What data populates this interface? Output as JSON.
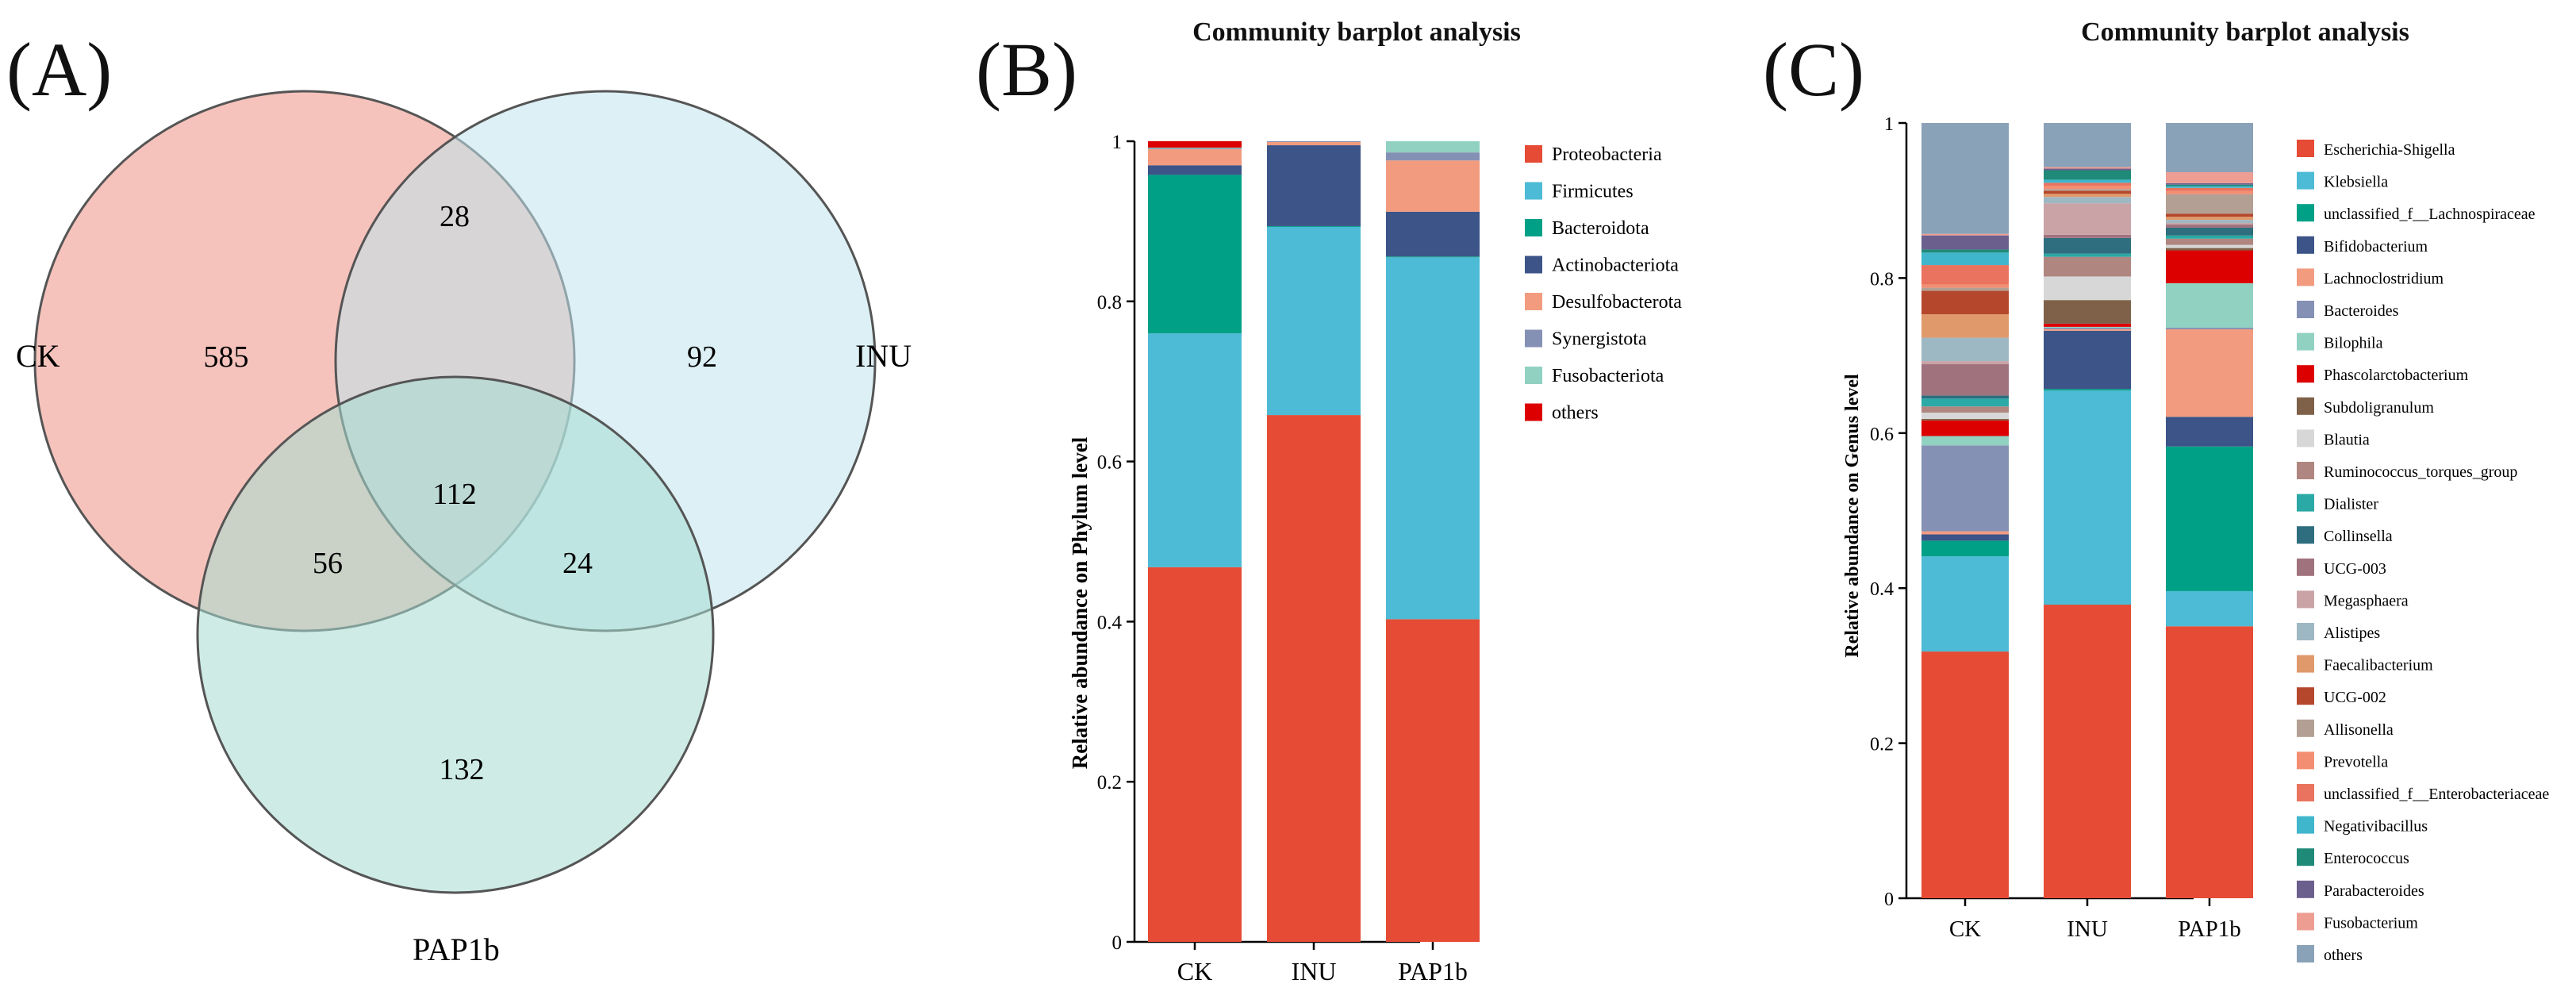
{
  "panels": {
    "a": {
      "label": "(A)"
    },
    "b": {
      "label": "(B)"
    },
    "c": {
      "label": "(C)"
    }
  },
  "colors": {
    "ck": "#f4b8b0",
    "inu": "#bfe3ec",
    "pap": "#a5dcd0"
  },
  "chart_data": [
    {
      "type": "venn",
      "sets": [
        "CK",
        "INU",
        "PAP1b"
      ],
      "regions": {
        "CK_only": 585,
        "INU_only": 92,
        "PAP1b_only": 132,
        "CK_INU": 28,
        "CK_PAP1b": 56,
        "INU_PAP1b": 24,
        "CK_INU_PAP1b": 112
      }
    },
    {
      "type": "bar",
      "stacked": true,
      "title": "Community barplot analysis",
      "xlabel": "",
      "ylabel": "Relative abundance on Phylum level",
      "ylim": [
        0,
        1
      ],
      "yticks": [
        "0",
        "0.2",
        "0.4",
        "0.6",
        "0.8",
        "1"
      ],
      "categories": [
        "CK",
        "INU",
        "PAP1b"
      ],
      "series": [
        {
          "name": "Proteobacteria",
          "color": "#e64b35",
          "values": [
            0.468,
            0.658,
            0.403
          ]
        },
        {
          "name": "Firmicutes",
          "color": "#4dbbd5",
          "values": [
            0.292,
            0.235,
            0.452
          ]
        },
        {
          "name": "Bacteroidota",
          "color": "#00a087",
          "values": [
            0.198,
            0.001,
            0.001
          ]
        },
        {
          "name": "Actinobacteriota",
          "color": "#3c5488",
          "values": [
            0.012,
            0.101,
            0.056
          ]
        },
        {
          "name": "Desulfobacterota",
          "color": "#f39b7f",
          "values": [
            0.02,
            0.004,
            0.064
          ]
        },
        {
          "name": "Synergistota",
          "color": "#8491b4",
          "values": [
            0.001,
            0.001,
            0.01
          ]
        },
        {
          "name": "Fusobacteriota",
          "color": "#91d1c2",
          "values": [
            0.001,
            0.0,
            0.014
          ]
        },
        {
          "name": "others",
          "color": "#dc0000",
          "values": [
            0.008,
            0.0,
            0.0
          ]
        }
      ]
    },
    {
      "type": "bar",
      "stacked": true,
      "title": "Community barplot analysis",
      "xlabel": "",
      "ylabel": "Relative abundance on Genus level",
      "ylim": [
        0,
        1
      ],
      "yticks": [
        "0",
        "0.2",
        "0.4",
        "0.6",
        "0.8",
        "1"
      ],
      "categories": [
        "CK",
        "INU",
        "PAP1b"
      ],
      "series": [
        {
          "name": "Escherichia-Shigella",
          "color": "#e64b35",
          "values": [
            0.316,
            0.373,
            0.348
          ]
        },
        {
          "name": "Klebsiella",
          "color": "#4dbbd5",
          "values": [
            0.122,
            0.272,
            0.045
          ]
        },
        {
          "name": "unclassified_f__Lachnospiraceae",
          "color": "#00a087",
          "values": [
            0.02,
            0.002,
            0.185
          ]
        },
        {
          "name": "Bifidobacterium",
          "color": "#3c5488",
          "values": [
            0.008,
            0.074,
            0.038
          ]
        },
        {
          "name": "Lachnoclostridium",
          "color": "#f39b7f",
          "values": [
            0.004,
            0.002,
            0.112
          ]
        },
        {
          "name": "Bacteroides",
          "color": "#8491b4",
          "values": [
            0.11,
            0.002,
            0.002
          ]
        },
        {
          "name": "Bilophila",
          "color": "#91d1c2",
          "values": [
            0.012,
            0.001,
            0.057
          ]
        },
        {
          "name": "Phascolarctobacterium",
          "color": "#dc0000",
          "values": [
            0.02,
            0.004,
            0.042
          ]
        },
        {
          "name": "Subdoligranulum",
          "color": "#7e6148",
          "values": [
            0.002,
            0.03,
            0.003
          ]
        },
        {
          "name": "Blautia",
          "color": "#d7d7d7",
          "values": [
            0.008,
            0.03,
            0.004
          ]
        },
        {
          "name": "Ruminococcus_torques_group",
          "color": "#b08680",
          "values": [
            0.008,
            0.025,
            0.008
          ]
        },
        {
          "name": "Dialister",
          "color": "#2aa9a6",
          "values": [
            0.01,
            0.004,
            0.004
          ]
        },
        {
          "name": "Collinsella",
          "color": "#2e6e7e",
          "values": [
            0.004,
            0.02,
            0.01
          ]
        },
        {
          "name": "UCG-003",
          "color": "#a0727e",
          "values": [
            0.04,
            0.004,
            0.004
          ]
        },
        {
          "name": "Megasphaera",
          "color": "#c9a3a6",
          "values": [
            0.004,
            0.04,
            0.002
          ]
        },
        {
          "name": "Alistipes",
          "color": "#9eb8c3",
          "values": [
            0.03,
            0.008,
            0.004
          ]
        },
        {
          "name": "Faecalibacterium",
          "color": "#e0996b",
          "values": [
            0.03,
            0.004,
            0.004
          ]
        },
        {
          "name": "UCG-002",
          "color": "#b5472c",
          "values": [
            0.03,
            0.004,
            0.004
          ]
        },
        {
          "name": "Allisonella",
          "color": "#b39f93",
          "values": [
            0.004,
            0.002,
            0.025
          ]
        },
        {
          "name": "Prevotella",
          "color": "#f48e72",
          "values": [
            0.004,
            0.004,
            0.004
          ]
        },
        {
          "name": "unclassified_f__Enterobacteriaceae",
          "color": "#e9735e",
          "values": [
            0.025,
            0.004,
            0.004
          ]
        },
        {
          "name": "Negativibacillus",
          "color": "#3fb6cc",
          "values": [
            0.016,
            0.004,
            0.002
          ]
        },
        {
          "name": "Enterococcus",
          "color": "#1f8a78",
          "values": [
            0.004,
            0.012,
            0.002
          ]
        },
        {
          "name": "Parabacteroides",
          "color": "#6b5f8e",
          "values": [
            0.018,
            0.002,
            0.002
          ]
        },
        {
          "name": "Fusobacterium",
          "color": "#ee9d93",
          "values": [
            0.002,
            0.002,
            0.014
          ]
        },
        {
          "name": "others",
          "color": "#8aa2b8",
          "values": [
            0.142,
            0.056,
            0.063
          ]
        }
      ]
    }
  ]
}
